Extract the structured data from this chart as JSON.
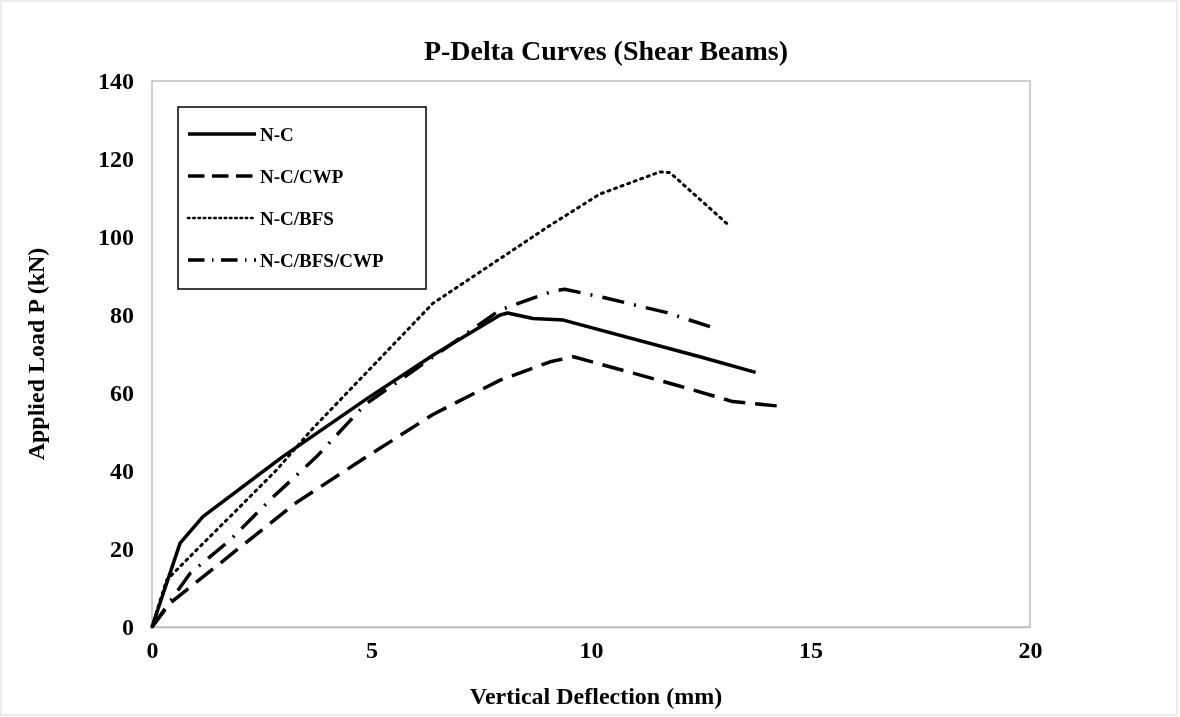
{
  "chart_data": {
    "type": "line",
    "title": "P-Delta Curves (Shear Beams)",
    "xlabel": "Vertical Deflection (mm)",
    "ylabel": "Applied Load P (kN)",
    "xlim": [
      0,
      20
    ],
    "xticks": [
      0,
      5,
      10,
      15,
      20
    ],
    "ylim": [
      0,
      140
    ],
    "yticks": [
      0,
      20,
      40,
      60,
      80,
      100,
      120,
      140
    ],
    "grid": false,
    "legend": "top left",
    "marker": "none",
    "series": [
      {
        "name": "N-C",
        "color": "#000000",
        "line_style": "solid",
        "x": [
          0,
          0.64,
          1.16,
          2.98,
          4.89,
          6.4,
          7.93,
          8.1,
          8.68,
          9.37,
          12.48,
          13.75
        ],
        "values": [
          0,
          21.5,
          28.3,
          43.7,
          58.5,
          69.7,
          80,
          80.5,
          79.1,
          78.7,
          69.3,
          65.3
        ]
      },
      {
        "name": "N-C/CWP",
        "color": "#000000",
        "line_style": "dashed",
        "x": [
          0,
          0.41,
          2.07,
          3.3,
          4.66,
          6.4,
          7.93,
          9.07,
          9.6,
          10.96,
          11.95,
          13.23,
          14.23
        ],
        "values": [
          0,
          6.1,
          21,
          32,
          42,
          54.5,
          63.3,
          68,
          69.3,
          65.1,
          62,
          57.8,
          56.7
        ]
      },
      {
        "name": "N-C/BFS",
        "color": "#000000",
        "line_style": "dotted",
        "x": [
          0,
          0.33,
          1.09,
          1.93,
          2.84,
          3.67,
          6.4,
          9.07,
          10.2,
          11.57,
          11.8,
          13.09
        ],
        "values": [
          0,
          12,
          20.6,
          30,
          40.3,
          51,
          83,
          103,
          111,
          116.7,
          116.5,
          103.5
        ]
      },
      {
        "name": "N-C/BFS/CWP",
        "color": "#000000",
        "line_style": "dashdot",
        "x": [
          0,
          0.87,
          1.78,
          2.69,
          3.75,
          4.85,
          7.93,
          9.1,
          9.4,
          10.36,
          11.73,
          12.71
        ],
        "values": [
          0,
          13.8,
          22.3,
          32.6,
          43.7,
          57,
          81.3,
          86,
          86.6,
          84.3,
          80.6,
          77
        ]
      }
    ]
  }
}
